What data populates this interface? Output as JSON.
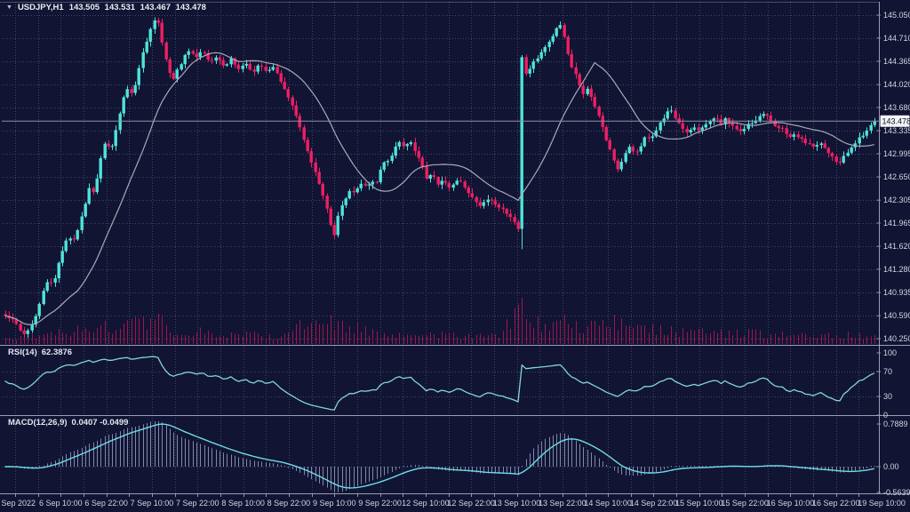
{
  "window": {
    "dropdown_icon": "▼",
    "symbol_period": "USDJPY,H1",
    "ohlc_line": "143.505 143.531 143.467 143.478"
  },
  "colors": {
    "background": "#111433",
    "grid": "#3f4668",
    "panel_border": "#b4b8c6",
    "bull": "#4fe3d9",
    "bear": "#ee1f63",
    "volume": "#9c1750",
    "ma_line": "#a7abb8",
    "rsi_line": "#83d7d0",
    "macd_line": "#6fdbe8",
    "macd_hist": "#8d96b5",
    "axis_text": "#d2d5e0",
    "axis_tick": "#8f94aa",
    "price_line": "#8d92a8",
    "tag_bg": "#f4f5f7",
    "tag_text": "#10132c"
  },
  "chart_data": {
    "type": "candlestick",
    "symbol": "USDJPY",
    "timeframe": "H1",
    "quote": {
      "open": "143.505",
      "high": "143.531",
      "low": "143.467",
      "close": "143.478"
    },
    "current_price": 143.478,
    "current_price_label": "143.478",
    "price_axis": {
      "top": 145.05,
      "bottom": 140.25,
      "ticks": [
        "145.050",
        "144.710",
        "144.365",
        "144.020",
        "143.680",
        "143.335",
        "142.995",
        "142.650",
        "142.305",
        "141.965",
        "141.620",
        "141.280",
        "140.935",
        "140.590",
        "140.250"
      ]
    },
    "time_axis": {
      "labels": [
        "5 Sep 2022",
        "6 Sep 10:00",
        "6 Sep 22:00",
        "7 Sep 10:00",
        "7 Sep 22:00",
        "8 Sep 10:00",
        "8 Sep 22:00",
        "9 Sep 10:00",
        "9 Sep 22:00",
        "12 Sep 10:00",
        "12 Sep 22:00",
        "13 Sep 10:00",
        "13 Sep 22:00",
        "14 Sep 10:00",
        "14 Sep 22:00",
        "15 Sep 10:00",
        "15 Sep 22:00",
        "16 Sep 10:00",
        "16 Sep 22:00",
        "19 Sep 10:00"
      ]
    },
    "price_waypoints": [
      [
        0,
        140.62
      ],
      [
        10,
        140.58
      ],
      [
        20,
        140.45
      ],
      [
        28,
        140.28
      ],
      [
        36,
        140.45
      ],
      [
        46,
        140.85
      ],
      [
        54,
        141.12
      ],
      [
        60,
        141.05
      ],
      [
        68,
        141.5
      ],
      [
        76,
        141.78
      ],
      [
        84,
        141.72
      ],
      [
        92,
        142.05
      ],
      [
        100,
        142.5
      ],
      [
        106,
        142.42
      ],
      [
        112,
        142.88
      ],
      [
        118,
        143.18
      ],
      [
        126,
        143.08
      ],
      [
        134,
        143.55
      ],
      [
        142,
        143.98
      ],
      [
        150,
        143.88
      ],
      [
        158,
        144.38
      ],
      [
        166,
        144.7
      ],
      [
        172,
        144.95
      ],
      [
        177,
        145.0
      ],
      [
        184,
        144.55
      ],
      [
        190,
        144.2
      ],
      [
        196,
        144.12
      ],
      [
        204,
        144.35
      ],
      [
        212,
        144.52
      ],
      [
        220,
        144.42
      ],
      [
        228,
        144.55
      ],
      [
        236,
        144.32
      ],
      [
        244,
        144.45
      ],
      [
        252,
        144.28
      ],
      [
        260,
        144.4
      ],
      [
        268,
        144.25
      ],
      [
        276,
        144.35
      ],
      [
        284,
        144.18
      ],
      [
        292,
        144.32
      ],
      [
        300,
        144.2
      ],
      [
        308,
        144.3
      ],
      [
        316,
        144.05
      ],
      [
        324,
        143.85
      ],
      [
        332,
        143.62
      ],
      [
        340,
        143.3
      ],
      [
        348,
        142.95
      ],
      [
        356,
        142.68
      ],
      [
        364,
        142.35
      ],
      [
        371,
        142.0
      ],
      [
        376,
        141.78
      ],
      [
        382,
        142.15
      ],
      [
        388,
        142.3
      ],
      [
        394,
        142.45
      ],
      [
        400,
        142.42
      ],
      [
        406,
        142.55
      ],
      [
        412,
        142.48
      ],
      [
        418,
        142.62
      ],
      [
        424,
        142.55
      ],
      [
        430,
        142.9
      ],
      [
        436,
        142.88
      ],
      [
        442,
        143.02
      ],
      [
        450,
        143.18
      ],
      [
        456,
        143.1
      ],
      [
        462,
        143.18
      ],
      [
        468,
        143.02
      ],
      [
        474,
        142.88
      ],
      [
        480,
        142.62
      ],
      [
        486,
        142.68
      ],
      [
        492,
        142.55
      ],
      [
        498,
        142.6
      ],
      [
        504,
        142.48
      ],
      [
        510,
        142.52
      ],
      [
        516,
        142.62
      ],
      [
        522,
        142.52
      ],
      [
        528,
        142.42
      ],
      [
        534,
        142.32
      ],
      [
        540,
        142.22
      ],
      [
        548,
        142.3
      ],
      [
        556,
        142.28
      ],
      [
        564,
        142.18
      ],
      [
        571,
        142.1
      ],
      [
        578,
        142.0
      ],
      [
        583,
        141.88
      ],
      [
        587,
        144.42
      ],
      [
        592,
        144.18
      ],
      [
        598,
        144.3
      ],
      [
        604,
        144.42
      ],
      [
        610,
        144.5
      ],
      [
        616,
        144.6
      ],
      [
        622,
        144.75
      ],
      [
        628,
        144.92
      ],
      [
        632,
        144.88
      ],
      [
        638,
        144.5
      ],
      [
        644,
        144.28
      ],
      [
        650,
        144.1
      ],
      [
        656,
        143.88
      ],
      [
        662,
        143.95
      ],
      [
        668,
        143.72
      ],
      [
        674,
        143.55
      ],
      [
        680,
        143.28
      ],
      [
        686,
        143.05
      ],
      [
        692,
        142.82
      ],
      [
        696,
        142.72
      ],
      [
        702,
        142.98
      ],
      [
        708,
        143.1
      ],
      [
        714,
        143.0
      ],
      [
        720,
        143.05
      ],
      [
        726,
        143.25
      ],
      [
        732,
        143.2
      ],
      [
        738,
        143.35
      ],
      [
        744,
        143.48
      ],
      [
        750,
        143.6
      ],
      [
        756,
        143.65
      ],
      [
        762,
        143.48
      ],
      [
        768,
        143.35
      ],
      [
        774,
        143.3
      ],
      [
        780,
        143.4
      ],
      [
        786,
        143.32
      ],
      [
        792,
        143.42
      ],
      [
        798,
        143.46
      ],
      [
        804,
        143.55
      ],
      [
        810,
        143.42
      ],
      [
        816,
        143.5
      ],
      [
        822,
        143.46
      ],
      [
        828,
        143.38
      ],
      [
        834,
        143.32
      ],
      [
        840,
        143.42
      ],
      [
        846,
        143.46
      ],
      [
        852,
        143.5
      ],
      [
        858,
        143.58
      ],
      [
        864,
        143.55
      ],
      [
        870,
        143.45
      ],
      [
        876,
        143.38
      ],
      [
        882,
        143.34
      ],
      [
        888,
        143.26
      ],
      [
        894,
        143.3
      ],
      [
        900,
        143.22
      ],
      [
        906,
        143.18
      ],
      [
        912,
        143.1
      ],
      [
        918,
        143.15
      ],
      [
        924,
        143.12
      ],
      [
        930,
        143.05
      ],
      [
        936,
        142.95
      ],
      [
        942,
        142.82
      ],
      [
        948,
        142.92
      ],
      [
        954,
        143.02
      ],
      [
        960,
        143.1
      ],
      [
        966,
        143.2
      ],
      [
        972,
        143.3
      ],
      [
        978,
        143.4
      ],
      [
        984,
        143.478
      ],
      [
        988,
        143.478
      ]
    ],
    "volume_waypoints": [
      [
        0,
        7
      ],
      [
        30,
        11
      ],
      [
        60,
        13
      ],
      [
        100,
        20
      ],
      [
        140,
        26
      ],
      [
        177,
        30
      ],
      [
        200,
        18
      ],
      [
        240,
        14
      ],
      [
        280,
        12
      ],
      [
        315,
        11
      ],
      [
        335,
        22
      ],
      [
        375,
        30
      ],
      [
        400,
        22
      ],
      [
        440,
        15
      ],
      [
        480,
        12
      ],
      [
        520,
        12
      ],
      [
        565,
        15
      ],
      [
        587,
        52
      ],
      [
        600,
        26
      ],
      [
        630,
        30
      ],
      [
        660,
        26
      ],
      [
        695,
        30
      ],
      [
        730,
        20
      ],
      [
        770,
        16
      ],
      [
        810,
        14
      ],
      [
        850,
        14
      ],
      [
        890,
        12
      ],
      [
        930,
        14
      ],
      [
        984,
        10
      ]
    ],
    "indicators": {
      "ma": {
        "name": "Moving Average",
        "period": 20
      },
      "rsi": {
        "label": "RSI(14)",
        "value": "62.3876",
        "axis": [
          "100",
          "70",
          "30",
          "0"
        ],
        "levels": [
          70,
          30
        ],
        "range": [
          0,
          100
        ]
      },
      "macd": {
        "label": "MACD(12,26,9)",
        "value": "0.0407 -0.0499",
        "axis": [
          "0.7889",
          "0.00",
          "-0.5639"
        ],
        "max": 0.7889,
        "min": -0.5639
      }
    }
  }
}
